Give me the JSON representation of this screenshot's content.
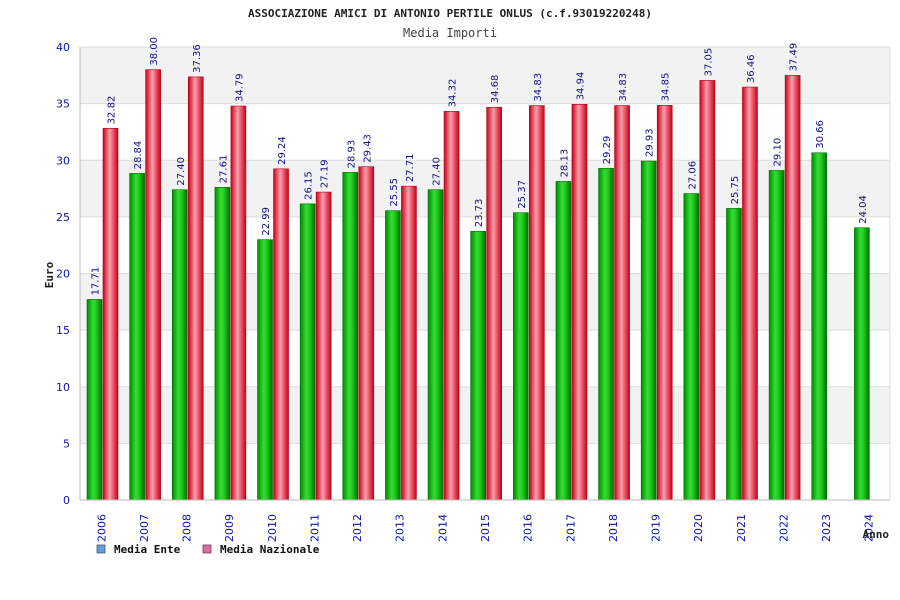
{
  "chart_data": {
    "type": "bar",
    "title": "ASSOCIAZIONE AMICI DI ANTONIO PERTILE ONLUS (c.f.93019220248)",
    "subtitle": "Media Importi",
    "xlabel": "Anno",
    "ylabel": "Euro",
    "ylim": [
      0,
      40
    ],
    "yticks": [
      0,
      5,
      10,
      15,
      20,
      25,
      30,
      35,
      40
    ],
    "ytick_labels": [
      "0",
      "5",
      "10",
      "15",
      "20",
      "25",
      "30",
      "35",
      "40"
    ],
    "grid": true,
    "legend_position": "bottom-left",
    "categories": [
      "2006",
      "2007",
      "2008",
      "2009",
      "2010",
      "2011",
      "2012",
      "2013",
      "2014",
      "2015",
      "2016",
      "2017",
      "2018",
      "2019",
      "2020",
      "2021",
      "2022",
      "2023",
      "2024"
    ],
    "series": [
      {
        "name": "Media Ente",
        "color": "#10c010",
        "legend_color": "#5aa0e6",
        "values": [
          17.71,
          28.84,
          27.4,
          27.61,
          22.99,
          26.15,
          28.93,
          25.55,
          27.4,
          23.73,
          25.37,
          28.13,
          29.29,
          29.93,
          27.06,
          25.75,
          29.1,
          30.66,
          24.04
        ],
        "labels": [
          "17.71",
          "28.84",
          "27.40",
          "27.61",
          "22.99",
          "26.15",
          "28.93",
          "25.55",
          "27.40",
          "23.73",
          "25.37",
          "28.13",
          "29.29",
          "29.93",
          "27.06",
          "25.75",
          "29.10",
          "30.66",
          "24.04"
        ]
      },
      {
        "name": "Media Nazionale",
        "color": "#e8283a",
        "legend_color": "#e06aa0",
        "values": [
          32.82,
          38.0,
          37.36,
          34.79,
          29.24,
          27.19,
          29.43,
          27.71,
          34.32,
          34.68,
          34.83,
          34.94,
          34.83,
          34.85,
          37.05,
          36.46,
          37.49,
          null,
          null
        ],
        "labels": [
          "32.82",
          "38.00",
          "37.36",
          "34.79",
          "29.24",
          "27.19",
          "29.43",
          "27.71",
          "34.32",
          "34.68",
          "34.83",
          "34.94",
          "34.83",
          "34.85",
          "37.05",
          "36.46",
          "37.49",
          null,
          null
        ]
      }
    ]
  },
  "colors": {
    "axis_text": "#1010b0",
    "value_label": "#101080",
    "band": "#f2f2f2",
    "grid": "#dddddd"
  }
}
